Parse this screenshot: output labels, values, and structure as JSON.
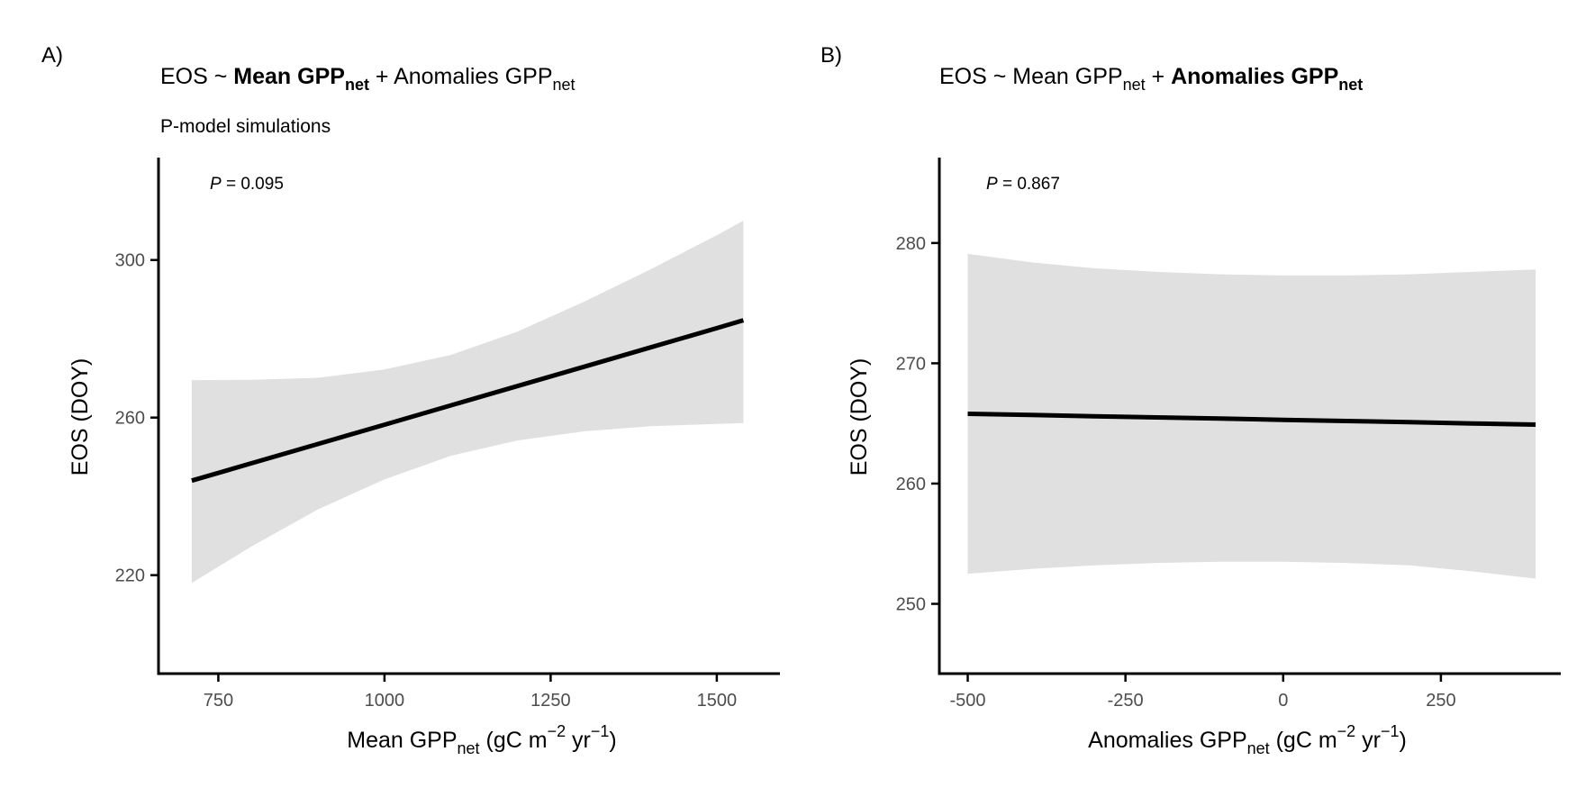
{
  "chart_data": [
    {
      "type": "line",
      "panel_label": "A)",
      "title": {
        "prefix": "EOS ~ ",
        "bold": "Mean GPP",
        "bold_sub": "net",
        "suffix": " + Anomalies GPP",
        "suffix_sub": "net"
      },
      "subtitle": "P-model simulations",
      "annotation": {
        "symbol": "P",
        "text": " = 0.095"
      },
      "xlabel": {
        "main": "Mean GPP",
        "sub": "net",
        "unit": " (gC m",
        "e1": "−2",
        "mid": " yr",
        "e2": "−1",
        "end": ")"
      },
      "ylabel": "EOS (DOY)",
      "xlim": [
        660,
        1595
      ],
      "ylim": [
        195,
        326
      ],
      "xticks": [
        750,
        1000,
        1250,
        1500
      ],
      "xtick_labels": [
        "750",
        "1000",
        "1250",
        "1500"
      ],
      "yticks": [
        220,
        260,
        300
      ],
      "ytick_labels": [
        "220",
        "260",
        "300"
      ],
      "x": [
        710,
        800,
        900,
        1000,
        1100,
        1200,
        1300,
        1400,
        1500,
        1540
      ],
      "fit": [
        244,
        248.4,
        253.3,
        258.2,
        263.1,
        268,
        272.9,
        277.8,
        282.7,
        284.7
      ],
      "lower": [
        218,
        227.3,
        236.7,
        244.3,
        250.3,
        254.2,
        256.5,
        257.8,
        258.4,
        258.6
      ],
      "upper": [
        269.5,
        269.6,
        270.1,
        272.2,
        275.9,
        281.8,
        289.4,
        297.6,
        306.3,
        310
      ],
      "grid": false,
      "colors": {
        "line": "#000000",
        "band": "#e0e0e0",
        "axis": "#000000"
      }
    },
    {
      "type": "line",
      "panel_label": "B)",
      "title": {
        "prefix": "EOS ~ Mean GPP",
        "prefix_sub": "net",
        "mid": " + ",
        "bold": "Anomalies GPP",
        "bold_sub": "net"
      },
      "subtitle": "",
      "annotation": {
        "symbol": "P",
        "text": " = 0.867"
      },
      "xlabel": {
        "main": "Anomalies GPP",
        "sub": "net",
        "unit": " (gC m",
        "e1": "−2",
        "mid": " yr",
        "e2": "−1",
        "end": ")"
      },
      "ylabel": "EOS (DOY)",
      "xlim": [
        -545,
        440
      ],
      "ylim": [
        244.2,
        287.1
      ],
      "xticks": [
        -500,
        -250,
        0,
        250
      ],
      "xtick_labels": [
        "-500",
        "-250",
        "0",
        "250"
      ],
      "yticks": [
        250,
        260,
        270,
        280
      ],
      "ytick_labels": [
        "250",
        "260",
        "270",
        "280"
      ],
      "x": [
        -500,
        -400,
        -300,
        -200,
        -100,
        0,
        100,
        200,
        300,
        400
      ],
      "fit": [
        265.8,
        265.7,
        265.6,
        265.5,
        265.4,
        265.3,
        265.2,
        265.1,
        265,
        264.9
      ],
      "lower": [
        252.5,
        252.9,
        253.2,
        253.4,
        253.5,
        253.5,
        253.4,
        253.2,
        252.7,
        252.1
      ],
      "upper": [
        279.1,
        278.4,
        277.9,
        277.6,
        277.4,
        277.3,
        277.3,
        277.4,
        277.6,
        277.8
      ],
      "grid": false,
      "colors": {
        "line": "#000000",
        "band": "#e0e0e0",
        "axis": "#000000"
      }
    }
  ]
}
